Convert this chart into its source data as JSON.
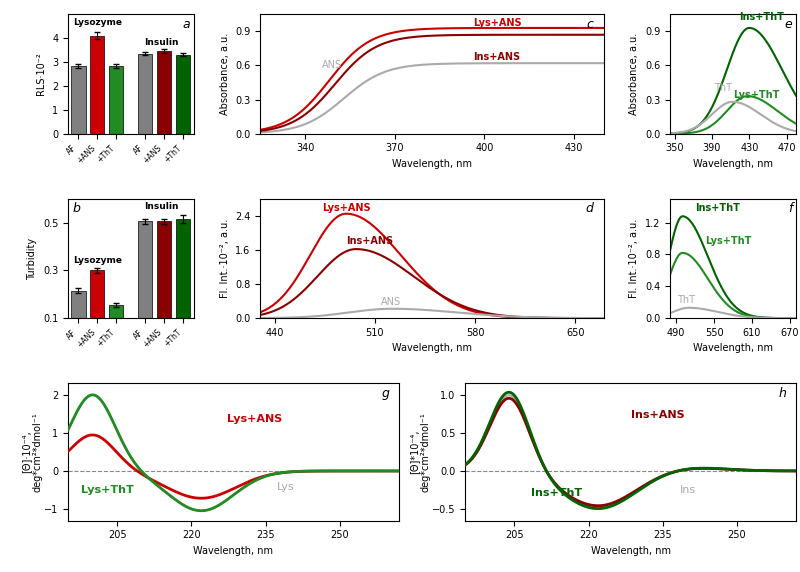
{
  "panel_a": {
    "lys_values": [
      2.85,
      4.1,
      2.85
    ],
    "lys_errors": [
      0.08,
      0.15,
      0.08
    ],
    "ins_values": [
      3.35,
      3.45,
      3.3
    ],
    "ins_errors": [
      0.06,
      0.08,
      0.06
    ],
    "colors_lys": [
      "#808080",
      "#cc0000",
      "#228B22"
    ],
    "colors_ins": [
      "#808080",
      "#8B0000",
      "#006400"
    ],
    "ylabel": "RLS·10⁻²",
    "ylim": [
      0,
      5
    ],
    "yticks": [
      0,
      1,
      2,
      3,
      4
    ],
    "label": "a"
  },
  "panel_b": {
    "lys_values": [
      0.215,
      0.3,
      0.155
    ],
    "lys_errors": [
      0.01,
      0.012,
      0.008
    ],
    "ins_values": [
      0.505,
      0.505,
      0.515
    ],
    "ins_errors": [
      0.01,
      0.01,
      0.015
    ],
    "colors_lys": [
      "#808080",
      "#cc0000",
      "#228B22"
    ],
    "colors_ins": [
      "#808080",
      "#8B0000",
      "#006400"
    ],
    "ylabel": "Turbidity",
    "ylim": [
      0.1,
      0.6
    ],
    "yticks": [
      0.1,
      0.3,
      0.5
    ],
    "label": "b"
  },
  "colors": {
    "gray": "#808080",
    "red": "#cc0000",
    "green": "#228B22",
    "dark_red": "#8B0000",
    "dark_green": "#006400",
    "light_gray": "#aaaaaa"
  }
}
